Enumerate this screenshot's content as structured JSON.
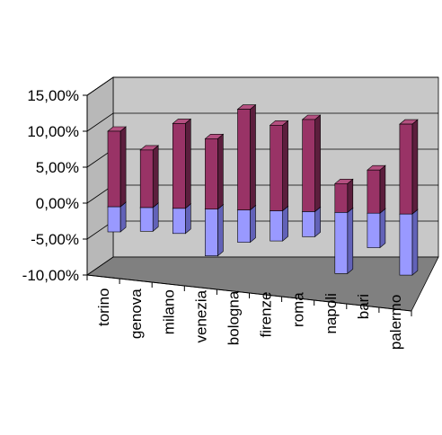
{
  "colors": {
    "positive_front": "#993366",
    "positive_side": "#5c1e3d",
    "positive_top": "#b45080",
    "negative_front": "#9999ff",
    "negative_side": "#6262b8",
    "negative_top": "#000000",
    "back_wall": "#c8c8c8",
    "side_wall": "#b8b8b8",
    "floor": "#808080",
    "gridline": "#000000"
  },
  "chart_data": {
    "type": "bar",
    "style": "3d-column",
    "title": "",
    "xlabel": "",
    "ylabel": "",
    "ylim": [
      -10,
      15
    ],
    "yticks": [
      {
        "value": 15,
        "label": "15,00%"
      },
      {
        "value": 10,
        "label": "10,00%"
      },
      {
        "value": 5,
        "label": "5,00%"
      },
      {
        "value": 0,
        "label": "0,00%"
      },
      {
        "value": -5,
        "label": "-5,00%"
      },
      {
        "value": -10,
        "label": "-10,00%"
      }
    ],
    "grid": true,
    "legend": "none",
    "categories": [
      "torino",
      "genova",
      "milano",
      "venezia",
      "bologna",
      "firenze",
      "roma",
      "napoli",
      "bari",
      "palermo"
    ],
    "series": [
      {
        "values": [
          10.5,
          8.0,
          11.8,
          9.8,
          14.0,
          11.9,
          12.8,
          4.0,
          6.0,
          12.5
        ]
      },
      {
        "values": [
          -3.5,
          -3.3,
          -3.5,
          -6.5,
          -4.5,
          -4.2,
          -3.5,
          -8.5,
          -4.8,
          -8.5
        ]
      }
    ]
  }
}
